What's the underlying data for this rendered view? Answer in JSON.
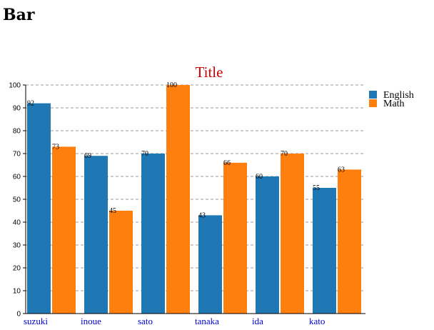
{
  "page": {
    "heading": "Bar"
  },
  "chart_data": {
    "type": "bar",
    "title": "Title",
    "title_color": "#cc0000",
    "categories": [
      "suzuki",
      "inoue",
      "sato",
      "tanaka",
      "ida",
      "kato"
    ],
    "series": [
      {
        "name": "English",
        "color": "#1f77b4",
        "values": [
          92,
          69,
          70,
          43,
          60,
          55
        ]
      },
      {
        "name": "Math",
        "color": "#ff7f0e",
        "values": [
          73,
          45,
          100,
          66,
          70,
          63
        ]
      }
    ],
    "ylim": [
      0,
      100
    ],
    "y_ticks": [
      0,
      10,
      20,
      30,
      40,
      50,
      60,
      70,
      80,
      90,
      100
    ],
    "grid": true,
    "grid_style": "dashed",
    "legend_position": "right",
    "data_labels": true,
    "category_label_color": "#0000cc"
  }
}
